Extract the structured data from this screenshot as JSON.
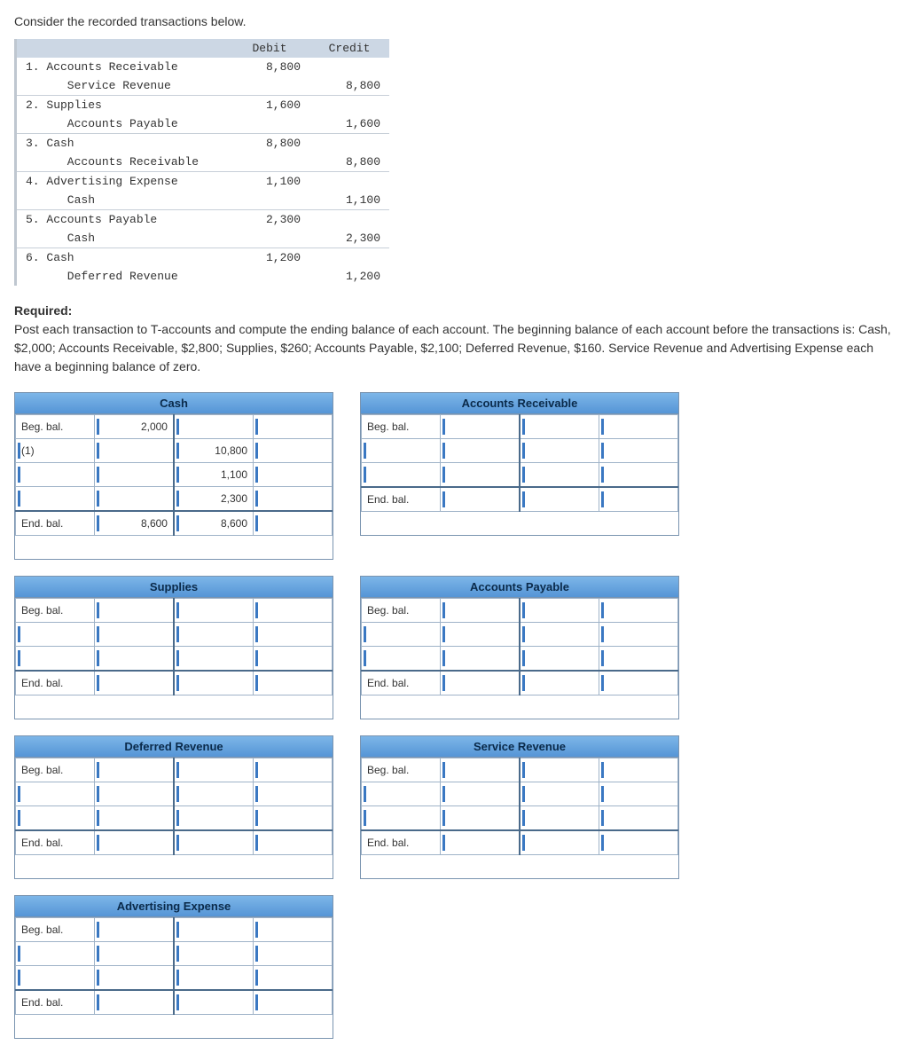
{
  "intro": "Consider the recorded transactions below.",
  "journal": {
    "headers": {
      "debit": "Debit",
      "credit": "Credit"
    },
    "entries": [
      {
        "n": "1.",
        "acct": "Accounts Receivable",
        "debit": "8,800",
        "credit": "",
        "sub": "Service Revenue",
        "sub_credit": "8,800"
      },
      {
        "n": "2.",
        "acct": "Supplies",
        "debit": "1,600",
        "credit": "",
        "sub": "Accounts Payable",
        "sub_credit": "1,600"
      },
      {
        "n": "3.",
        "acct": "Cash",
        "debit": "8,800",
        "credit": "",
        "sub": "Accounts Receivable",
        "sub_credit": "8,800"
      },
      {
        "n": "4.",
        "acct": "Advertising Expense",
        "debit": "1,100",
        "credit": "",
        "sub": "Cash",
        "sub_credit": "1,100"
      },
      {
        "n": "5.",
        "acct": "Accounts Payable",
        "debit": "2,300",
        "credit": "",
        "sub": "Cash",
        "sub_credit": "2,300"
      },
      {
        "n": "6.",
        "acct": "Cash",
        "debit": "1,200",
        "credit": "",
        "sub": "Deferred Revenue",
        "sub_credit": "1,200"
      }
    ]
  },
  "required_heading": "Required:",
  "required_text": "Post each transaction to T-accounts and compute the ending balance of each account. The beginning balance of each account before the transactions is: Cash, $2,000; Accounts Receivable, $2,800; Supplies, $260; Accounts Payable, $2,100; Deferred Revenue, $160. Service Revenue and Advertising Expense each have a beginning balance of zero.",
  "labels": {
    "beg": "Beg. bal.",
    "end": "End. bal."
  },
  "taccounts": {
    "cash": {
      "title": "Cash",
      "rows": [
        {
          "l_lbl": "Beg. bal.",
          "l_val": "2,000",
          "r_lbl": "",
          "r_val": ""
        },
        {
          "l_lbl": "(1)",
          "l_val": "",
          "r_lbl": "10,800",
          "r_val": ""
        },
        {
          "l_lbl": "",
          "l_val": "",
          "r_lbl": "1,100",
          "r_val": ""
        },
        {
          "l_lbl": "",
          "l_val": "",
          "r_lbl": "2,300",
          "r_val": ""
        }
      ],
      "end": {
        "l_lbl": "End. bal.",
        "l_val": "8,600",
        "r_lbl": "8,600",
        "r_val": ""
      }
    },
    "ar": {
      "title": "Accounts Receivable",
      "rows": [
        {
          "l_lbl": "Beg. bal.",
          "l_val": "",
          "r_lbl": "",
          "r_val": ""
        },
        {
          "l_lbl": "",
          "l_val": "",
          "r_lbl": "",
          "r_val": ""
        },
        {
          "l_lbl": "",
          "l_val": "",
          "r_lbl": "",
          "r_val": ""
        }
      ],
      "end": {
        "l_lbl": "End. bal.",
        "l_val": "",
        "r_lbl": "",
        "r_val": ""
      }
    },
    "supplies": {
      "title": "Supplies",
      "rows": [
        {
          "l_lbl": "Beg. bal.",
          "l_val": "",
          "r_lbl": "",
          "r_val": ""
        },
        {
          "l_lbl": "",
          "l_val": "",
          "r_lbl": "",
          "r_val": ""
        },
        {
          "l_lbl": "",
          "l_val": "",
          "r_lbl": "",
          "r_val": ""
        }
      ],
      "end": {
        "l_lbl": "End. bal.",
        "l_val": "",
        "r_lbl": "",
        "r_val": ""
      }
    },
    "ap": {
      "title": "Accounts Payable",
      "rows": [
        {
          "l_lbl": "Beg. bal.",
          "l_val": "",
          "r_lbl": "",
          "r_val": ""
        },
        {
          "l_lbl": "",
          "l_val": "",
          "r_lbl": "",
          "r_val": ""
        },
        {
          "l_lbl": "",
          "l_val": "",
          "r_lbl": "",
          "r_val": ""
        }
      ],
      "end": {
        "l_lbl": "End. bal.",
        "l_val": "",
        "r_lbl": "",
        "r_val": ""
      }
    },
    "defrev": {
      "title": "Deferred Revenue",
      "rows": [
        {
          "l_lbl": "Beg. bal.",
          "l_val": "",
          "r_lbl": "",
          "r_val": ""
        },
        {
          "l_lbl": "",
          "l_val": "",
          "r_lbl": "",
          "r_val": ""
        },
        {
          "l_lbl": "",
          "l_val": "",
          "r_lbl": "",
          "r_val": ""
        }
      ],
      "end": {
        "l_lbl": "End. bal.",
        "l_val": "",
        "r_lbl": "",
        "r_val": ""
      }
    },
    "svcrev": {
      "title": "Service Revenue",
      "rows": [
        {
          "l_lbl": "Beg. bal.",
          "l_val": "",
          "r_lbl": "",
          "r_val": ""
        },
        {
          "l_lbl": "",
          "l_val": "",
          "r_lbl": "",
          "r_val": ""
        },
        {
          "l_lbl": "",
          "l_val": "",
          "r_lbl": "",
          "r_val": ""
        }
      ],
      "end": {
        "l_lbl": "End. bal.",
        "l_val": "",
        "r_lbl": "",
        "r_val": ""
      }
    },
    "advexp": {
      "title": "Advertising Expense",
      "rows": [
        {
          "l_lbl": "Beg. bal.",
          "l_val": "",
          "r_lbl": "",
          "r_val": ""
        },
        {
          "l_lbl": "",
          "l_val": "",
          "r_lbl": "",
          "r_val": ""
        },
        {
          "l_lbl": "",
          "l_val": "",
          "r_lbl": "",
          "r_val": ""
        }
      ],
      "end": {
        "l_lbl": "End. bal.",
        "l_val": "",
        "r_lbl": "",
        "r_val": ""
      }
    }
  },
  "tacct_order": [
    "cash",
    "ar",
    "supplies",
    "ap",
    "defrev",
    "svcrev",
    "advexp"
  ]
}
